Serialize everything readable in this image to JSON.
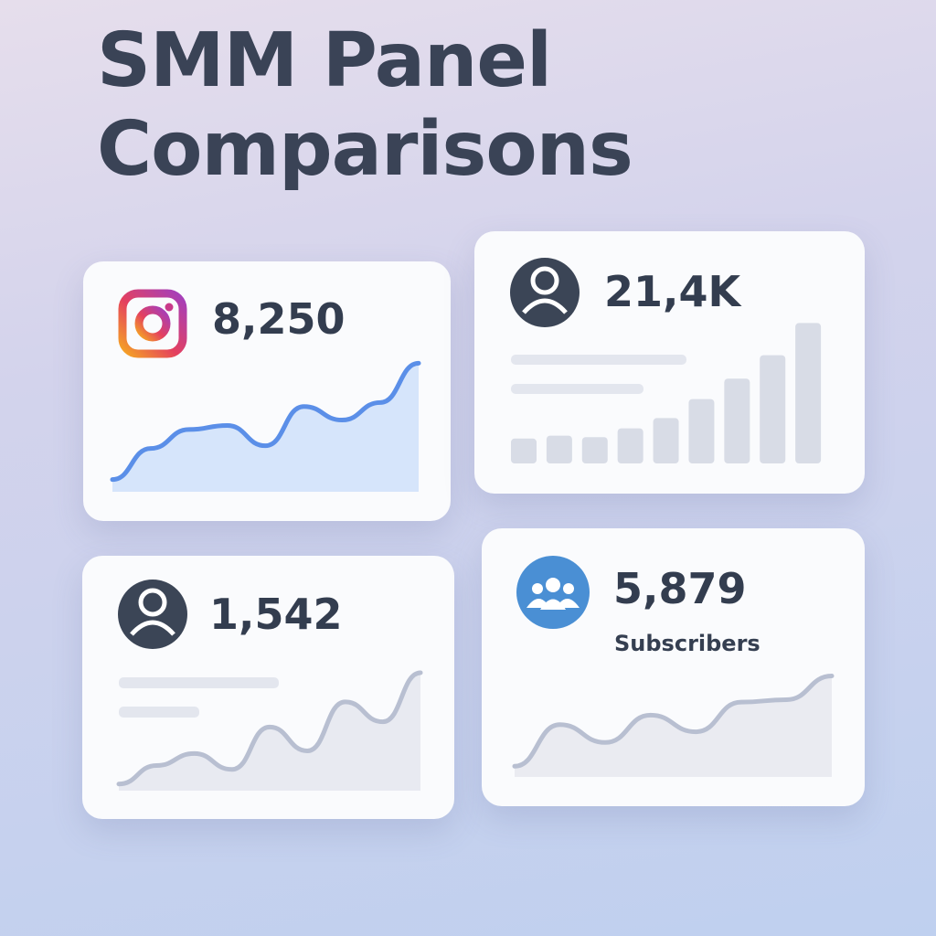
{
  "title": "SMM Panel Comparisons",
  "cards": [
    {
      "value": "8,250",
      "chart": {
        "type": "area",
        "color": "#5b8fe8",
        "fill": "#cfe0fa",
        "values": [
          9,
          32,
          46,
          49,
          34,
          63,
          53,
          66,
          95
        ]
      }
    },
    {
      "value": "21,4K",
      "chart": {
        "type": "bar",
        "color": "#d8dce6",
        "values": [
          17,
          19,
          18,
          24,
          31,
          44,
          58,
          74,
          96
        ]
      }
    },
    {
      "value": "1,542",
      "chart": {
        "type": "area",
        "color": "#b8bfd1",
        "fill": "#e4e6ee",
        "values": [
          5,
          19,
          28,
          16,
          48,
          30,
          67,
          52,
          89
        ]
      }
    },
    {
      "value": "5,879",
      "label": "Subscribers",
      "chart": {
        "type": "area",
        "color": "#b8bfd1",
        "fill": "#e6e8ef",
        "values": [
          9,
          44,
          29,
          52,
          38,
          63,
          65,
          85
        ]
      }
    }
  ]
}
